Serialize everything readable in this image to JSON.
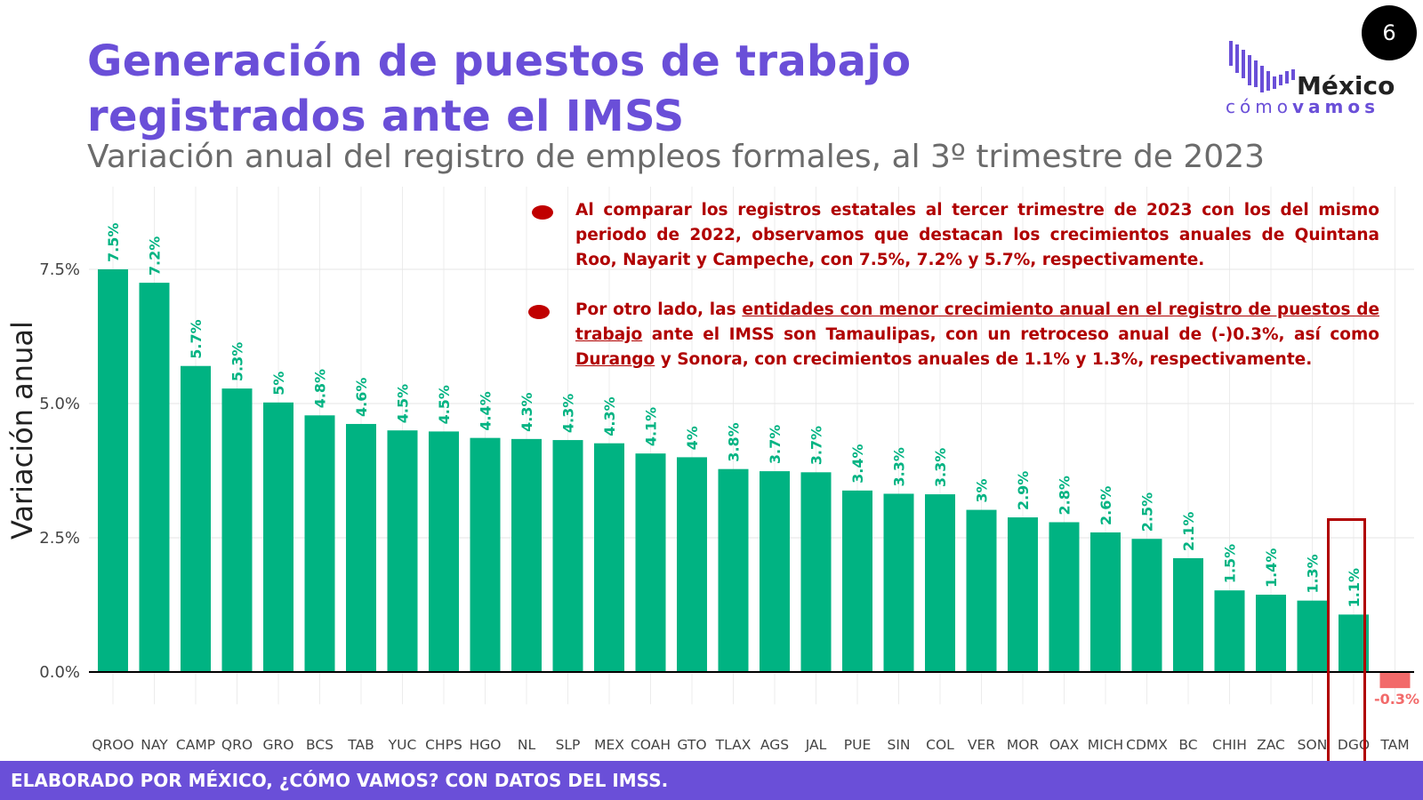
{
  "page_number": "6",
  "title_line1": "Generación de puestos de trabajo",
  "title_line2": "registrados ante el IMSS",
  "subtitle": "Variación anual del registro de empleos formales, al 3º trimestre de 2023",
  "logo": {
    "main": "México",
    "sub_light": "cómo",
    "sub_bold": "vamos"
  },
  "ylabel": "Variación anual",
  "notes": {
    "n1": "Al comparar los registros estatales al tercer trimestre de 2023 con los del mismo periodo de 2022, observamos que destacan los crecimientos anuales de Quintana Roo, Nayarit y Campeche, con 7.5%, 7.2% y 5.7%, respectivamente.",
    "n2_a": "Por otro lado, las ",
    "n2_u1": "entidades con menor crecimiento anual en el registro de puestos de trabajo",
    "n2_b": " ante el IMSS son Tamaulipas, con un retroceso anual de (-)0.3%, así como ",
    "n2_u2": "Durango",
    "n2_c": " y Sonora, con crecimientos anuales de 1.1% y 1.3%, respectivamente."
  },
  "footer": "ELABORADO POR MÉXICO, ¿CÓMO VAMOS? CON DATOS DEL IMSS.",
  "colors": {
    "positive": "#00b382",
    "negative": "#f26a6a",
    "accent": "#6a4fd8",
    "note": "#b00000"
  },
  "chart_data": {
    "type": "bar",
    "ylabel": "Variación anual",
    "ylim": [
      -0.6,
      8.8
    ],
    "yticks": [
      0.0,
      2.5,
      5.0,
      7.5
    ],
    "ytick_labels": [
      "0.0%",
      "2.5%",
      "5.0%",
      "7.5%"
    ],
    "grid": true,
    "highlighted_category": "DGO",
    "categories": [
      "QROO",
      "NAY",
      "CAMP",
      "QRO",
      "GRO",
      "BCS",
      "TAB",
      "YUC",
      "CHPS",
      "HGO",
      "NL",
      "SLP",
      "MEX",
      "COAH",
      "GTO",
      "TLAX",
      "AGS",
      "JAL",
      "PUE",
      "SIN",
      "COL",
      "VER",
      "MOR",
      "OAX",
      "MICH",
      "CDMX",
      "BC",
      "CHIH",
      "ZAC",
      "SON",
      "DGO",
      "TAM"
    ],
    "values": [
      7.5,
      7.25,
      5.7,
      5.28,
      5.02,
      4.78,
      4.62,
      4.5,
      4.48,
      4.36,
      4.34,
      4.32,
      4.26,
      4.07,
      4.0,
      3.78,
      3.74,
      3.72,
      3.38,
      3.32,
      3.31,
      3.02,
      2.88,
      2.79,
      2.6,
      2.48,
      2.12,
      1.52,
      1.44,
      1.33,
      1.07,
      -0.3
    ],
    "data_labels": [
      "7.5%",
      "7.2%",
      "5.7%",
      "5.3%",
      "5%",
      "4.8%",
      "4.6%",
      "4.5%",
      "4.5%",
      "4.4%",
      "4.3%",
      "4.3%",
      "4.3%",
      "4.1%",
      "4%",
      "3.8%",
      "3.7%",
      "3.7%",
      "3.4%",
      "3.3%",
      "3.3%",
      "3%",
      "2.9%",
      "2.8%",
      "2.6%",
      "2.5%",
      "2.1%",
      "1.5%",
      "1.4%",
      "1.3%",
      "1.1%",
      "-0.3%"
    ]
  }
}
